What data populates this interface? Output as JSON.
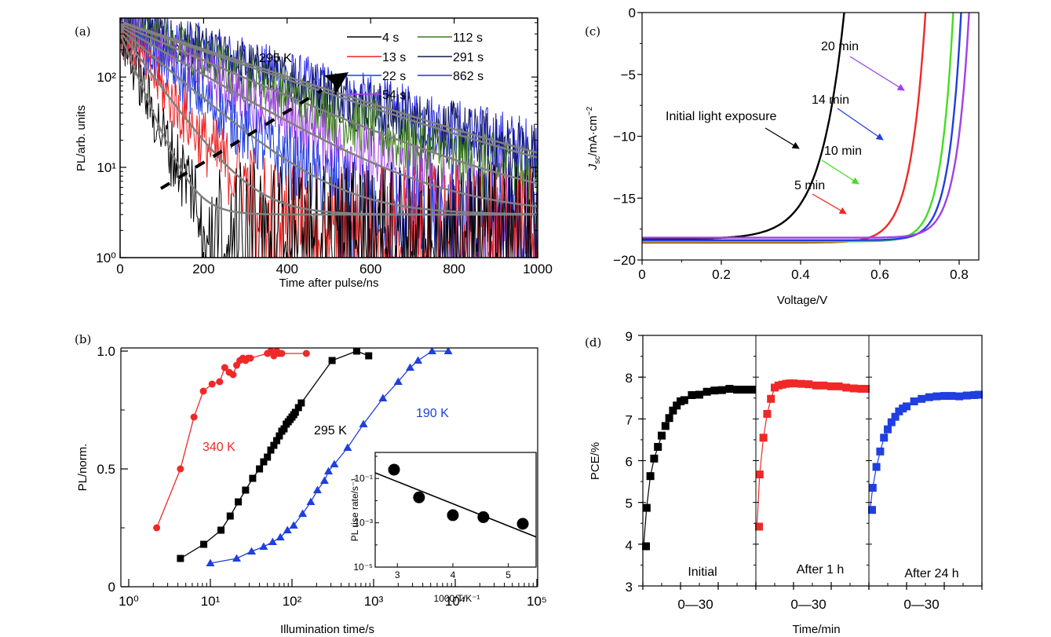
{
  "figure": {
    "panels": [
      "(a)",
      "(b)",
      "(c)",
      "(d)"
    ]
  },
  "chart_data": [
    {
      "id": "a",
      "type": "line",
      "panel_label": "(a)",
      "title": "",
      "xlabel": "Time after pulse/ns",
      "ylabel": "PL/arb. units",
      "xlim": [
        0,
        1000
      ],
      "ylim": [
        1,
        450
      ],
      "yscale": "log",
      "xticks": [
        0,
        200,
        400,
        600,
        800,
        1000
      ],
      "xtick_labels": [
        "0",
        "200",
        "400",
        "600",
        "800",
        "1000"
      ],
      "yticks": [
        1,
        10,
        100
      ],
      "ytick_labels": [
        "10⁰",
        "10¹",
        "10²"
      ],
      "annotation": "295 K",
      "arrow_note": "dashed arrow indicating increasing illumination time",
      "legend_position": "top-right",
      "series": [
        {
          "name": "4 s",
          "color": "#000000",
          "A": 300,
          "tau": 38,
          "bg": 3
        },
        {
          "name": "13 s",
          "color": "#f02020",
          "A": 320,
          "tau": 68,
          "bg": 3
        },
        {
          "name": "22 s",
          "color": "#1f3fe0",
          "A": 340,
          "tau": 110,
          "bg": 3
        },
        {
          "name": "54 s",
          "color": "#a040e8",
          "A": 360,
          "tau": 160,
          "bg": 3
        },
        {
          "name": "112 s",
          "color": "#3a7a1a",
          "A": 380,
          "tau": 215,
          "bg": 3
        },
        {
          "name": "291 s",
          "color": "#101850",
          "A": 400,
          "tau": 270,
          "bg": 3
        },
        {
          "name": "862 s",
          "color": "#2a2af0",
          "A": 410,
          "tau": 280,
          "bg": 3
        }
      ],
      "fit_color": "#808080"
    },
    {
      "id": "b",
      "type": "line",
      "panel_label": "(b)",
      "xlabel": "Illumination time/s",
      "ylabel": "PL/norm.",
      "xscale": "log",
      "xlim": [
        1,
        100000
      ],
      "ylim": [
        0,
        1.1
      ],
      "xticks": [
        1,
        10,
        100,
        1000,
        10000,
        100000
      ],
      "xtick_labels": [
        "10⁰",
        "10¹",
        "10²",
        "10³",
        "10⁴",
        "10⁵"
      ],
      "yticks": [
        0,
        0.5,
        1.0
      ],
      "ytick_labels": [
        "0",
        "0.5",
        "1.0"
      ],
      "series": [
        {
          "name": "340 K",
          "color": "#f02828",
          "marker": "circle",
          "x": [
            2.2,
            4.3,
            6.3,
            8.2,
            10.5,
            13,
            15,
            17,
            19,
            21,
            23,
            25,
            27,
            29,
            31,
            50,
            55,
            60,
            65,
            70,
            75,
            150
          ],
          "y": [
            0.25,
            0.5,
            0.72,
            0.83,
            0.86,
            0.87,
            0.93,
            0.91,
            0.9,
            0.94,
            0.96,
            0.97,
            0.96,
            0.97,
            0.97,
            0.99,
            1.0,
            0.98,
            1.0,
            0.99,
            0.99,
            0.99
          ]
        },
        {
          "name": "295 K",
          "color": "#000000",
          "marker": "square",
          "x": [
            4.3,
            8.3,
            13.5,
            17.5,
            22,
            27,
            33,
            40,
            45,
            50,
            55,
            60,
            65,
            70,
            75,
            80,
            85,
            90,
            95,
            100,
            105,
            110,
            120,
            130,
            310,
            620,
            870
          ],
          "y": [
            0.12,
            0.18,
            0.24,
            0.3,
            0.36,
            0.41,
            0.46,
            0.5,
            0.53,
            0.55,
            0.58,
            0.6,
            0.62,
            0.64,
            0.66,
            0.67,
            0.69,
            0.7,
            0.71,
            0.72,
            0.73,
            0.74,
            0.76,
            0.78,
            0.96,
            1.0,
            0.98
          ]
        },
        {
          "name": "190 K",
          "color": "#1f3fe0",
          "marker": "triangle",
          "x": [
            10,
            21,
            32,
            45,
            58,
            72,
            88,
            105,
            135,
            170,
            205,
            250,
            280,
            330,
            480,
            750,
            1300,
            2000,
            2800,
            3500,
            5200,
            8200
          ],
          "y": [
            0.1,
            0.12,
            0.15,
            0.17,
            0.19,
            0.21,
            0.24,
            0.26,
            0.31,
            0.36,
            0.41,
            0.45,
            0.49,
            0.52,
            0.59,
            0.69,
            0.8,
            0.87,
            0.93,
            0.96,
            1.0,
            1.0
          ]
        }
      ],
      "annotations": [
        "340 K",
        "295 K",
        "190 K"
      ],
      "inset": {
        "type": "scatter",
        "xlabel": "1000/T/K⁻¹",
        "ylabel": "PL rise rate/s⁻¹",
        "yscale": "log",
        "xlim": [
          2.6,
          5.5
        ],
        "ylim": [
          1e-05,
          1.5
        ],
        "xticks": [
          3,
          4,
          5
        ],
        "xtick_labels": [
          "3",
          "4",
          "5"
        ],
        "yticks": [
          1e-05,
          0.001,
          0.1
        ],
        "ytick_labels": [
          "10⁻⁵",
          "10⁻³",
          "10⁻¹"
        ],
        "points": {
          "x": [
            2.94,
            3.39,
            4.0,
            4.55,
            5.26
          ],
          "y": [
            0.25,
            0.014,
            0.0022,
            0.0018,
            0.0009
          ]
        },
        "fit_line": {
          "x": [
            2.6,
            5.5
          ],
          "y": [
            0.18,
            0.00023
          ]
        }
      }
    },
    {
      "id": "c",
      "type": "line",
      "panel_label": "(c)",
      "xlabel": "Voltage/V",
      "ylabel": "Jsc/mA·cm⁻²",
      "ylabel_parts": {
        "main": "J",
        "sub": "sc",
        "rest": "/mA·cm",
        "sup": "−2"
      },
      "xlim": [
        0,
        0.85
      ],
      "ylim": [
        -20,
        0
      ],
      "xticks": [
        0,
        0.2,
        0.4,
        0.6,
        0.8
      ],
      "xtick_labels": [
        "0",
        "0.2",
        "0.4",
        "0.6",
        "0.8"
      ],
      "yticks": [
        0,
        -5,
        -10,
        -15,
        -20
      ],
      "ytick_labels": [
        "0",
        "−5",
        "−10",
        "−15",
        "−20"
      ],
      "series": [
        {
          "name": "Initial light exposure",
          "color": "#000000",
          "Jsc": -18.3,
          "Voc": 0.51,
          "n": 2.3
        },
        {
          "name": "5 min",
          "color": "#f02828",
          "Jsc": -18.6,
          "Voc": 0.715,
          "n": 1.45
        },
        {
          "name": "10 min",
          "color": "#44dd22",
          "Jsc": -18.5,
          "Voc": 0.785,
          "n": 1.2
        },
        {
          "name": "14 min",
          "color": "#1f3fe0",
          "Jsc": -18.4,
          "Voc": 0.805,
          "n": 1.2
        },
        {
          "name": "20 min",
          "color": "#a040e8",
          "Jsc": -18.2,
          "Voc": 0.825,
          "n": 1.25
        }
      ],
      "annotations": [
        "Initial light exposure",
        "5 min",
        "10 min",
        "14 min",
        "20 min"
      ]
    },
    {
      "id": "d",
      "type": "scatter",
      "panel_label": "(d)",
      "xlabel": "Time/min",
      "ylabel": "PCE/%",
      "ylim": [
        3,
        9
      ],
      "yticks": [
        3,
        4,
        5,
        6,
        7,
        8,
        9
      ],
      "ytick_labels": [
        "3",
        "4",
        "5",
        "6",
        "7",
        "8",
        "9"
      ],
      "subpanels": [
        {
          "name": "Initial",
          "xtick_label": "0—30",
          "color": "#000000",
          "xlim": [
            0,
            30
          ],
          "x": [
            0.2,
            1,
            2,
            3,
            4,
            5,
            6,
            7,
            8,
            9,
            10,
            11,
            13,
            15,
            17,
            19,
            21,
            23,
            25,
            27,
            29
          ],
          "y": [
            3.95,
            4.87,
            5.63,
            6.05,
            6.33,
            6.6,
            6.83,
            7.02,
            7.2,
            7.32,
            7.42,
            7.45,
            7.57,
            7.58,
            7.65,
            7.68,
            7.69,
            7.72,
            7.7,
            7.7,
            7.7
          ]
        },
        {
          "name": "After 1 h",
          "xtick_label": "0—30",
          "color": "#f02828",
          "xlim": [
            0,
            30
          ],
          "x": [
            0.3,
            1,
            2,
            3,
            4,
            5,
            6,
            7,
            8,
            9,
            10,
            12,
            14,
            16,
            18,
            20,
            22,
            24,
            26,
            28,
            30
          ],
          "y": [
            4.42,
            5.67,
            6.55,
            7.12,
            7.48,
            7.75,
            7.8,
            7.82,
            7.84,
            7.85,
            7.85,
            7.84,
            7.83,
            7.8,
            7.8,
            7.78,
            7.78,
            7.75,
            7.73,
            7.72,
            7.72
          ]
        },
        {
          "name": "After 24 h",
          "xtick_label": "0—30",
          "color": "#1f3fe0",
          "xlim": [
            0,
            30
          ],
          "x": [
            0.3,
            1,
            2,
            3,
            4,
            5,
            6,
            7,
            8,
            9,
            10,
            12,
            14,
            16,
            18,
            20,
            22,
            24,
            26,
            28,
            30
          ],
          "y": [
            4.82,
            5.35,
            5.85,
            6.22,
            6.55,
            6.75,
            6.92,
            7.05,
            7.18,
            7.25,
            7.3,
            7.42,
            7.48,
            7.52,
            7.54,
            7.55,
            7.55,
            7.54,
            7.56,
            7.57,
            7.58
          ]
        }
      ]
    }
  ]
}
